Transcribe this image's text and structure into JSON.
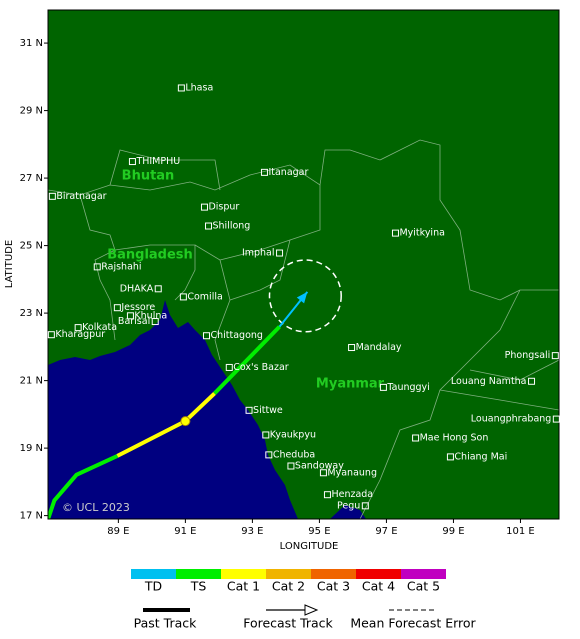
{
  "map": {
    "x_axis_label": "LONGITUDE",
    "y_axis_label": "LATITUDE",
    "copyright": "© UCL 2023",
    "xlim": [
      86.9,
      102.15
    ],
    "ylim": [
      16.9,
      31.98
    ],
    "xticks": [
      {
        "value": 89,
        "label": "89 E"
      },
      {
        "value": 91,
        "label": "91 E"
      },
      {
        "value": 93,
        "label": "93 E"
      },
      {
        "value": 95,
        "label": "95 E"
      },
      {
        "value": 97,
        "label": "97 E"
      },
      {
        "value": 99,
        "label": "99 E"
      },
      {
        "value": 101,
        "label": "101 E"
      }
    ],
    "yticks": [
      {
        "value": 17,
        "label": "17 N"
      },
      {
        "value": 19,
        "label": "19 N"
      },
      {
        "value": 21,
        "label": "21 N"
      },
      {
        "value": 23,
        "label": "23 N"
      },
      {
        "value": 25,
        "label": "25 N"
      },
      {
        "value": 27,
        "label": "27 N"
      },
      {
        "value": 29,
        "label": "29 N"
      },
      {
        "value": 31,
        "label": "31 N"
      }
    ],
    "land_color": "#006400",
    "sea_color": "#000080",
    "countries": [
      "Bhutan",
      "Bangladesh",
      "Myanmar"
    ],
    "cities": [
      {
        "name": "Lhasa",
        "lon": 90.88,
        "lat": 29.67
      },
      {
        "name": "THIMPHU",
        "lon": 89.42,
        "lat": 27.49
      },
      {
        "name": "Biratnagar",
        "lon": 87.03,
        "lat": 26.46
      },
      {
        "name": "Itanagar",
        "lon": 93.36,
        "lat": 27.17
      },
      {
        "name": "Dispur",
        "lon": 91.57,
        "lat": 26.14
      },
      {
        "name": "Shillong",
        "lon": 91.69,
        "lat": 25.58
      },
      {
        "name": "Imphal",
        "lon": 93.81,
        "lat": 24.78
      },
      {
        "name": "Myitkyina",
        "lon": 97.27,
        "lat": 25.37
      },
      {
        "name": "Rajshahi",
        "lon": 88.37,
        "lat": 24.37
      },
      {
        "name": "DHAKA",
        "lon": 90.19,
        "lat": 23.72
      },
      {
        "name": "Comilla",
        "lon": 90.94,
        "lat": 23.48
      },
      {
        "name": "Jessore",
        "lon": 88.97,
        "lat": 23.16
      },
      {
        "name": "Khulna",
        "lon": 89.36,
        "lat": 22.92
      },
      {
        "name": "Barisal",
        "lon": 90.1,
        "lat": 22.75
      },
      {
        "name": "Kolkata",
        "lon": 87.8,
        "lat": 22.57
      },
      {
        "name": "Kharagpur",
        "lon": 87.0,
        "lat": 22.36
      },
      {
        "name": "Chittagong",
        "lon": 91.63,
        "lat": 22.33
      },
      {
        "name": "Cox's Bazar",
        "lon": 92.31,
        "lat": 21.39
      },
      {
        "name": "Mandalay",
        "lon": 95.96,
        "lat": 21.98
      },
      {
        "name": "Taunggyi",
        "lon": 96.91,
        "lat": 20.8
      },
      {
        "name": "Louang Namtha",
        "lon": 101.33,
        "lat": 20.98
      },
      {
        "name": "Phongsali",
        "lon": 102.04,
        "lat": 21.74
      },
      {
        "name": "Louangphrabang",
        "lon": 102.07,
        "lat": 19.86
      },
      {
        "name": "Sittwe",
        "lon": 92.9,
        "lat": 20.12
      },
      {
        "name": "Kyaukpyu",
        "lon": 93.4,
        "lat": 19.39
      },
      {
        "name": "Cheduba",
        "lon": 93.49,
        "lat": 18.8
      },
      {
        "name": "Sandoway",
        "lon": 94.15,
        "lat": 18.47
      },
      {
        "name": "Mae Hong Son",
        "lon": 97.87,
        "lat": 19.3
      },
      {
        "name": "Chiang Mai",
        "lon": 98.91,
        "lat": 18.74
      },
      {
        "name": "Myanaung",
        "lon": 95.12,
        "lat": 18.27
      },
      {
        "name": "Henzada",
        "lon": 95.24,
        "lat": 17.62
      },
      {
        "name": "Pegu",
        "lon": 96.37,
        "lat": 17.29
      }
    ],
    "past_track": [
      {
        "color": "#00ee00",
        "points": [
          [
            86.91,
            16.92
          ],
          [
            87.09,
            17.45
          ],
          [
            87.75,
            18.21
          ],
          [
            88.97,
            18.77
          ]
        ]
      },
      {
        "color": "#ffff00",
        "points": [
          [
            88.97,
            18.77
          ],
          [
            91.0,
            19.8
          ],
          [
            91.87,
            20.62
          ]
        ]
      },
      {
        "color": "#00ee00",
        "points": [
          [
            91.87,
            20.62
          ],
          [
            93.81,
            22.6
          ]
        ]
      }
    ],
    "forecast_track": {
      "color": "#00c0ff",
      "points": [
        [
          93.81,
          22.6
        ],
        [
          94.64,
          23.63
        ]
      ]
    },
    "current_position": [
      91.0,
      19.8
    ],
    "forecast_error_circle": {
      "lon": 94.58,
      "lat": 23.51,
      "radius": 1.07
    }
  },
  "legend": {
    "scale": [
      {
        "label": "TD",
        "color": "#00c0f0"
      },
      {
        "label": "TS",
        "color": "#00ee00"
      },
      {
        "label": "Cat 1",
        "color": "#ffff00"
      },
      {
        "label": "Cat 2",
        "color": "#f0b400"
      },
      {
        "label": "Cat 3",
        "color": "#f06400"
      },
      {
        "label": "Cat 4",
        "color": "#f00000"
      },
      {
        "label": "Cat 5",
        "color": "#c000c0"
      }
    ],
    "past_track": "Past Track",
    "forecast_track": "Forecast Track",
    "mean_forecast_error": "Mean Forecast Error"
  }
}
